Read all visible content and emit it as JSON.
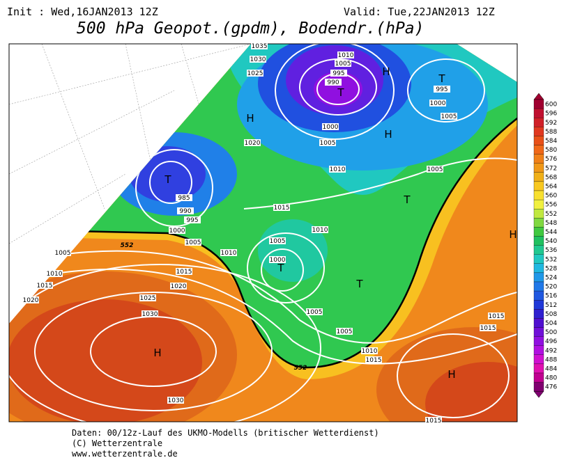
{
  "header": {
    "init": "Init : Wed,16JAN2013 12Z",
    "valid": "Valid: Tue,22JAN2013 12Z",
    "title": "500 hPa Geopot.(gpdm), Bodendr.(hPa)"
  },
  "legend": {
    "values": [
      600,
      596,
      592,
      588,
      584,
      580,
      576,
      572,
      568,
      564,
      560,
      556,
      552,
      548,
      544,
      540,
      536,
      532,
      528,
      524,
      520,
      516,
      512,
      508,
      504,
      500,
      496,
      492,
      488,
      484,
      480,
      476
    ]
  },
  "map_labels": {
    "pressure_centers": [
      "H",
      "T",
      "T",
      "H",
      "H",
      "T",
      "T",
      "H",
      "T",
      "T",
      "H",
      "H"
    ],
    "isobars": [
      1035,
      1030,
      1025,
      1010,
      1005,
      995,
      990,
      995,
      1000,
      1005,
      1000,
      1005,
      1020,
      1010,
      1005,
      985,
      990,
      995,
      1015,
      1000,
      1005,
      1010,
      1005,
      1010,
      1005,
      1000,
      1010,
      1015,
      1015,
      1020,
      1025,
      1020,
      1030,
      1005,
      1005,
      1010,
      1015,
      1015,
      1015,
      1030,
      1015
    ],
    "contour_552": [
      552,
      552
    ]
  },
  "footer": {
    "lines": [
      "Daten: 00/12z-Lauf des UKMO-Modells (britischer Wetterdienst)",
      "(C) Wetterzentrale",
      "www.wetterzentrale.de"
    ]
  }
}
